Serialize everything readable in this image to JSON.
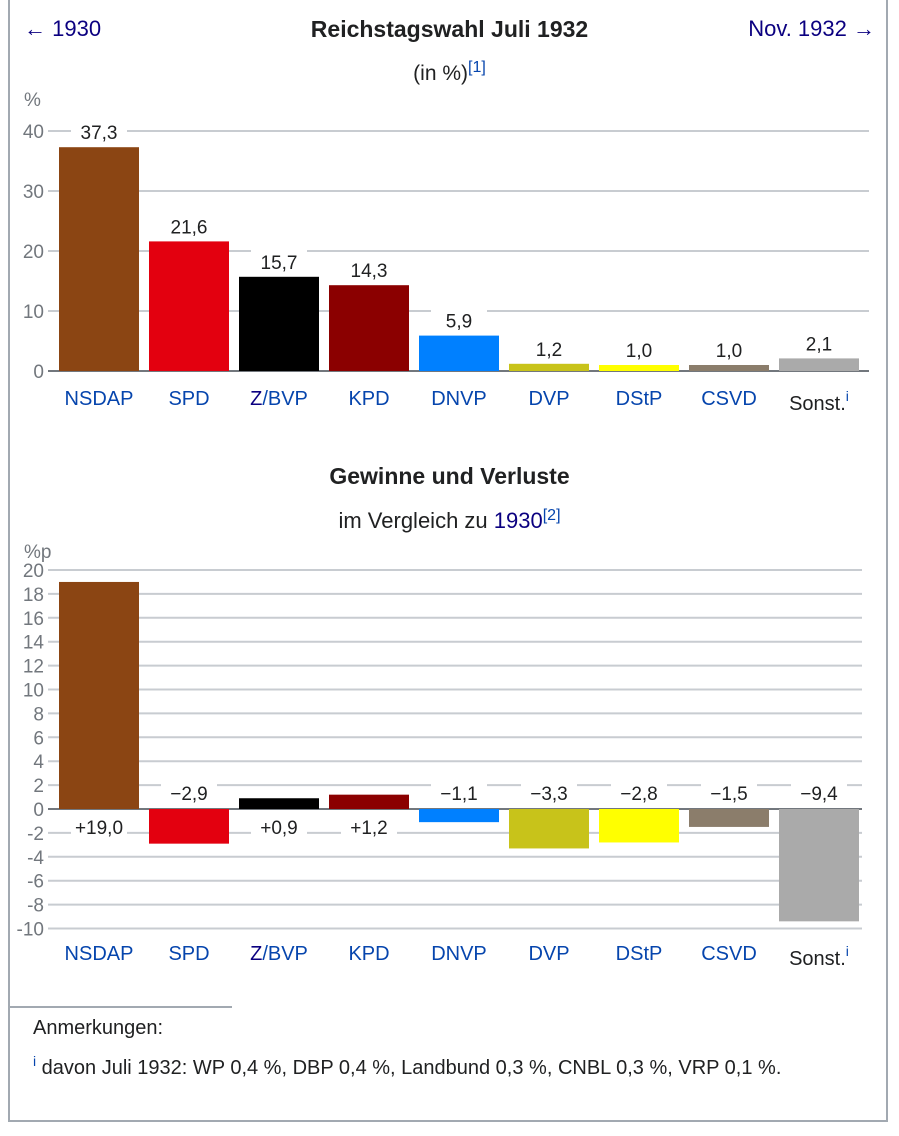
{
  "nav": {
    "prev_label": "← 1930",
    "next_label": "Nov. 1932 →"
  },
  "chart_data": [
    {
      "type": "bar",
      "title": "Reichstagswahl Juli 1932",
      "subtitle": "(in %)",
      "subtitle_ref": "[1]",
      "ylabel": "%",
      "ylim": [
        0,
        40
      ],
      "yticks": [
        0,
        10,
        20,
        30,
        40
      ],
      "grid": true,
      "categories": [
        "NSDAP",
        "SPD",
        "Z/BVP",
        "KPD",
        "DNVP",
        "DVP",
        "DStP",
        "CSVD",
        "Sonst."
      ],
      "values": [
        37.3,
        21.6,
        15.7,
        14.3,
        5.9,
        1.2,
        1.0,
        1.0,
        2.1
      ],
      "value_labels": [
        "37,3",
        "21,6",
        "15,7",
        "14,3",
        "5,9",
        "1,2",
        "1,0",
        "1,0",
        "2,1"
      ],
      "colors": [
        "#8b4513",
        "#e3000f",
        "#000000",
        "#8b0000",
        "#0080ff",
        "#c8c31a",
        "#ffff00",
        "#8b7d6b",
        "#aaaaaa"
      ],
      "category_footnote": {
        "Sonst.": "i"
      }
    },
    {
      "type": "bar",
      "title": "Gewinne und Verluste",
      "subtitle_prefix": "im Vergleich zu ",
      "subtitle_link": "1930",
      "subtitle_ref": "[2]",
      "ylabel": "%p",
      "ylim": [
        -10,
        20
      ],
      "yticks": [
        -10,
        -8,
        -6,
        -4,
        -2,
        0,
        2,
        4,
        6,
        8,
        10,
        12,
        14,
        16,
        18,
        20
      ],
      "grid": true,
      "categories": [
        "NSDAP",
        "SPD",
        "Z/BVP",
        "KPD",
        "DNVP",
        "DVP",
        "DStP",
        "CSVD",
        "Sonst."
      ],
      "values": [
        19.0,
        -2.9,
        0.9,
        1.2,
        -1.1,
        -3.3,
        -2.8,
        -1.5,
        -9.4
      ],
      "value_labels": [
        "+19,0",
        "−2,9",
        "+0,9",
        "+1,2",
        "−1,1",
        "−3,3",
        "−2,8",
        "−1,5",
        "−9,4"
      ],
      "colors": [
        "#8b4513",
        "#e3000f",
        "#000000",
        "#8b0000",
        "#0080ff",
        "#c8c31a",
        "#ffff00",
        "#8b7d6b",
        "#aaaaaa"
      ],
      "category_footnote": {
        "Sonst.": "i"
      }
    }
  ],
  "notes": {
    "heading": "Anmerkungen:",
    "marker": "i",
    "text": " davon Juli 1932: WP 0,4 %, DBP 0,4 %, Landbund 0,3 %, CNBL 0,3 %, VRP 0,1 %."
  },
  "link_color": "#0645ad"
}
